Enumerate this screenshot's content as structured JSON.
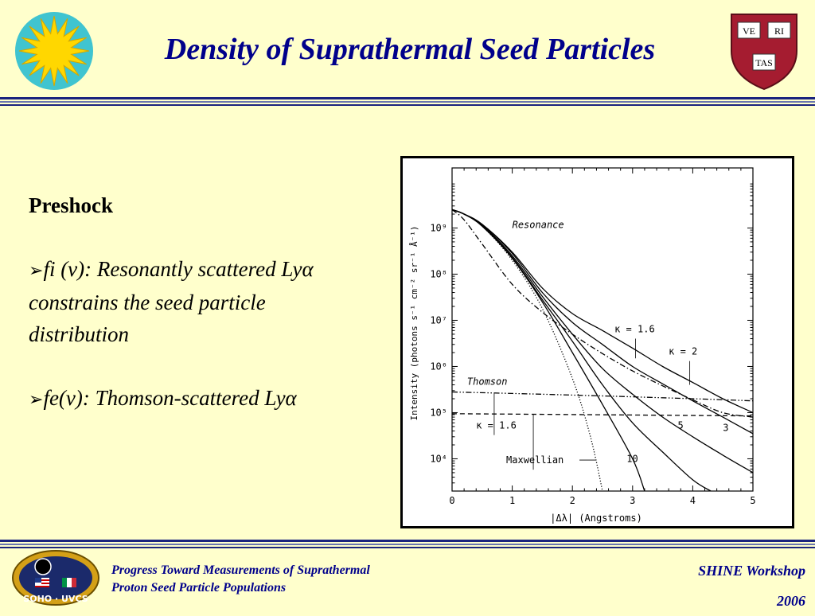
{
  "slide": {
    "title": "Density of Suprathermal Seed Particles",
    "left_heading": "Preshock",
    "bullet1_text": "fi (v):  Resonantly scattered Lyα constrains the seed particle distribution",
    "bullet2_text": "fe(v): Thomson-scattered Lyα",
    "shield_words": [
      "VE",
      "RI",
      "TAS"
    ],
    "footer_logo_text": "SOHO · UVCS",
    "footer_left_line1": "Progress Toward Measurements of Suprathermal",
    "footer_left_line2": "Proton Seed Particle Populations",
    "footer_right_line1": "SHINE Workshop",
    "footer_right_line2": "2006"
  },
  "colors": {
    "background": "#ffffcc",
    "title_blue": "#00008b",
    "rule_blue": "#1a237e",
    "harvard_crimson": "#a51c30",
    "sun_yellow": "#ffd700",
    "sun_teal": "#40c4d0"
  },
  "chart_data": {
    "type": "line",
    "xlabel": "|Δλ|  (Angstroms)",
    "ylabel": "Intensity  (photons s⁻¹ cm⁻² sr⁻¹ Å⁻¹)",
    "xlim": [
      0,
      5
    ],
    "ylim": [
      2000,
      20000000000
    ],
    "yscale": "log",
    "x_ticks": [
      0,
      1,
      2,
      3,
      4,
      5
    ],
    "y_ticks": [
      {
        "value": 10000,
        "label": "10⁴"
      },
      {
        "value": 100000,
        "label": "10⁵"
      },
      {
        "value": 1000000,
        "label": "10⁶"
      },
      {
        "value": 10000000,
        "label": "10⁷"
      },
      {
        "value": 100000000,
        "label": "10⁸"
      },
      {
        "value": 1000000000,
        "label": "10⁹"
      }
    ],
    "series": [
      {
        "id": "res_k16",
        "style": "solid",
        "x": [
          0,
          0.2,
          0.5,
          1.0,
          1.5,
          2.0,
          2.5,
          3.0,
          3.5,
          4.0,
          4.5,
          5.0
        ],
        "y": [
          2500000000,
          2000000000,
          1200000000,
          300000000,
          50000000,
          14000000,
          6000000,
          2500000,
          1000000,
          450000,
          200000,
          100000
        ]
      },
      {
        "id": "res_k2",
        "style": "solid",
        "x": [
          0,
          0.2,
          0.5,
          1.0,
          1.5,
          2.0,
          2.5,
          3.0,
          3.5,
          4.0,
          4.5,
          5.0
        ],
        "y": [
          2500000000,
          2000000000,
          1200000000,
          280000000,
          40000000,
          9000000,
          3000000,
          1000000,
          420000,
          180000,
          80000,
          35000
        ]
      },
      {
        "id": "res_k3",
        "style": "solid",
        "x": [
          0,
          0.2,
          0.5,
          1.0,
          1.5,
          2.0,
          2.5,
          3.0,
          3.5,
          4.0,
          4.5,
          5.0
        ],
        "y": [
          2500000000,
          2000000000,
          1150000000,
          250000000,
          33000000,
          5000000,
          900000,
          250000,
          80000,
          30000,
          12000,
          5000
        ]
      },
      {
        "id": "res_k10",
        "style": "solid",
        "x": [
          0,
          0.2,
          0.5,
          1.0,
          1.5,
          2.0,
          2.5,
          3.0,
          3.2
        ],
        "y": [
          2500000000,
          2000000000,
          1100000000,
          220000000,
          25000000,
          2000000,
          150000,
          10000,
          2000
        ]
      },
      {
        "id": "res_maxwellian",
        "style": "dotted",
        "x": [
          0,
          0.2,
          0.5,
          1.0,
          1.5,
          2.0,
          2.3,
          2.5
        ],
        "y": [
          2500000000,
          2000000000,
          1100000000,
          200000000,
          18000000,
          550000,
          30000,
          2000
        ]
      },
      {
        "id": "res_k5",
        "style": "solid",
        "x": [
          0,
          0.2,
          0.5,
          1.0,
          1.5,
          2.0,
          2.5,
          3.0,
          3.5,
          4.0,
          4.3
        ],
        "y": [
          2500000000,
          2000000000,
          1100000000,
          230000000,
          28000000,
          3500000,
          400000,
          60000,
          14000,
          3500,
          2000
        ]
      },
      {
        "id": "res_dashdot",
        "style": "dashdot",
        "x": [
          0,
          0.2,
          0.5,
          1.0,
          1.5,
          2.0,
          2.5,
          3.0,
          3.5,
          4.0,
          4.5,
          5.0
        ],
        "y": [
          2500000000,
          1500000000,
          450000000,
          60000000,
          15000000,
          5000000,
          1900000,
          800000,
          380000,
          190000,
          100000,
          80000
        ]
      },
      {
        "id": "thom_k16",
        "style": "dashdotdot",
        "x": [
          0,
          1,
          2,
          3,
          4,
          5
        ],
        "y": [
          280000,
          260000,
          240000,
          220000,
          200000,
          180000
        ]
      },
      {
        "id": "thom_maxwellian",
        "style": "dashed",
        "x": [
          0,
          5
        ],
        "y": [
          95000,
          85000
        ]
      }
    ],
    "annotations": [
      {
        "text": "Resonance",
        "italic": true,
        "x": 1.0,
        "y": 1000000000
      },
      {
        "text": "Thomson",
        "italic": true,
        "x": 0.25,
        "y": 400000
      },
      {
        "text": "κ = 1.6",
        "italic": false,
        "x": 2.7,
        "y": 5500000,
        "target_x": 3.05,
        "target_y": 1500000
      },
      {
        "text": "κ = 2",
        "italic": false,
        "x": 3.6,
        "y": 1800000,
        "target_x": 3.95,
        "target_y": 400000
      },
      {
        "text": "κ = 1.6",
        "italic": false,
        "x": 0.4,
        "y": 45000,
        "target_x": 0.7,
        "target_y": 270000
      },
      {
        "text": "Maxwellian",
        "italic": false,
        "x": 0.9,
        "y": 8000,
        "target_x": 1.35,
        "target_y": 92000,
        "target2_x": 2.4,
        "target2_y": 8000
      },
      {
        "text": "5",
        "italic": false,
        "x": 3.75,
        "y": 45000
      },
      {
        "text": "3",
        "italic": false,
        "x": 4.5,
        "y": 40000
      },
      {
        "text": "10",
        "italic": false,
        "x": 2.9,
        "y": 8500
      }
    ]
  }
}
